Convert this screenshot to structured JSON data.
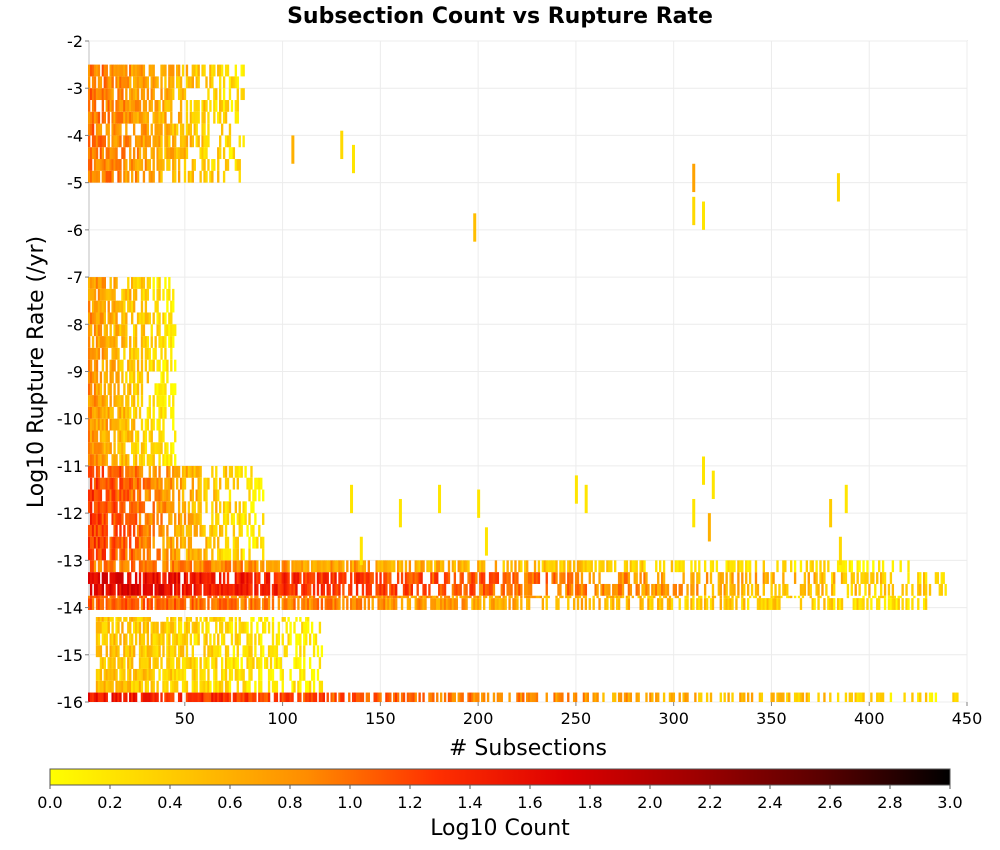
{
  "chart_data": {
    "type": "heatmap",
    "title": "Subsection Count vs Rupture Rate",
    "xlabel": "# Subsections",
    "ylabel": "Log10 Rupture Rate (/yr)",
    "xlim": [
      1,
      450
    ],
    "ylim": [
      -16,
      -2
    ],
    "xticks": [
      50,
      100,
      150,
      200,
      250,
      300,
      350,
      400,
      450
    ],
    "yticks": [
      -2,
      -3,
      -4,
      -5,
      -6,
      -7,
      -8,
      -9,
      -10,
      -11,
      -12,
      -13,
      -14,
      -15,
      -16
    ],
    "grid": true,
    "colorbar": {
      "label": "Log10 Count",
      "min": 0.0,
      "max": 3.0,
      "ticks": [
        "0.0",
        "0.2",
        "0.4",
        "0.6",
        "0.8",
        "1.0",
        "1.2",
        "1.4",
        "1.6",
        "1.8",
        "2.0",
        "2.2",
        "2.4",
        "2.6",
        "2.8",
        "3.0"
      ],
      "colors": [
        "#ffff00",
        "#ffc800",
        "#ff8c00",
        "#ff3000",
        "#dd0000",
        "#a00000",
        "#5a0000",
        "#000000"
      ]
    },
    "bands": [
      {
        "y_from": -13.25,
        "y_to": -13.75,
        "x_from": 1,
        "x_to": 440,
        "value_start": 1.7,
        "value_end": 0.3
      },
      {
        "y_from": -13.75,
        "y_to": -14.05,
        "x_from": 1,
        "x_to": 430,
        "value_start": 1.1,
        "value_end": 0.2
      },
      {
        "y_from": -13.0,
        "y_to": -13.25,
        "x_from": 1,
        "x_to": 420,
        "value_start": 1.0,
        "value_end": 0.1
      },
      {
        "y_from": -15.8,
        "y_to": -16.0,
        "x_from": 1,
        "x_to": 445,
        "value_start": 1.5,
        "value_end": 0.2
      },
      {
        "y_from": -11.0,
        "y_to": -13.0,
        "x_from": 1,
        "x_to": 90,
        "value_start": 1.3,
        "value_end": 0.1
      },
      {
        "y_from": -7.0,
        "y_to": -11.0,
        "x_from": 1,
        "x_to": 45,
        "value_start": 0.8,
        "value_end": 0.1
      },
      {
        "y_from": -14.2,
        "y_to": -15.8,
        "x_from": 5,
        "x_to": 120,
        "value_start": 0.5,
        "value_end": 0.1
      },
      {
        "y_from": -2.5,
        "y_to": -5.0,
        "x_from": 1,
        "x_to": 80,
        "value_start": 1.0,
        "value_end": 0.2
      }
    ],
    "sparse_points": [
      {
        "x": 105,
        "y": -4.3,
        "v": 0.6
      },
      {
        "x": 130,
        "y": -4.2,
        "v": 0.3
      },
      {
        "x": 136,
        "y": -4.5,
        "v": 0.2
      },
      {
        "x": 198,
        "y": -5.95,
        "v": 0.5
      },
      {
        "x": 310,
        "y": -4.9,
        "v": 0.7
      },
      {
        "x": 310,
        "y": -5.6,
        "v": 0.3
      },
      {
        "x": 315,
        "y": -5.7,
        "v": 0.2
      },
      {
        "x": 384,
        "y": -5.1,
        "v": 0.3
      },
      {
        "x": 315,
        "y": -11.1,
        "v": 0.2
      },
      {
        "x": 320,
        "y": -11.4,
        "v": 0.2
      },
      {
        "x": 318,
        "y": -12.3,
        "v": 0.6
      },
      {
        "x": 310,
        "y": -12.0,
        "v": 0.2
      },
      {
        "x": 388,
        "y": -11.7,
        "v": 0.2
      },
      {
        "x": 380,
        "y": -12.0,
        "v": 0.4
      },
      {
        "x": 200,
        "y": -11.8,
        "v": 0.2
      },
      {
        "x": 180,
        "y": -11.7,
        "v": 0.2
      },
      {
        "x": 250,
        "y": -11.5,
        "v": 0.2
      },
      {
        "x": 255,
        "y": -11.7,
        "v": 0.2
      },
      {
        "x": 160,
        "y": -12.0,
        "v": 0.2
      },
      {
        "x": 135,
        "y": -11.7,
        "v": 0.2
      },
      {
        "x": 204,
        "y": -12.6,
        "v": 0.2
      },
      {
        "x": 140,
        "y": -12.8,
        "v": 0.2
      },
      {
        "x": 385,
        "y": -12.8,
        "v": 0.3
      }
    ]
  }
}
